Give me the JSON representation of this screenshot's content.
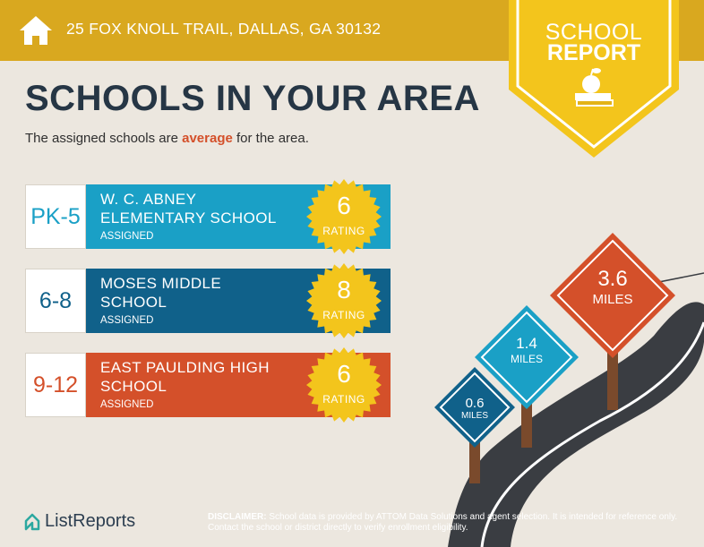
{
  "header": {
    "address": "25 FOX KNOLL TRAIL, DALLAS, GA 30132",
    "badge_line1": "SCHOOL",
    "badge_line2": "REPORT"
  },
  "main": {
    "title": "SCHOOLS IN YOUR AREA",
    "subtitle_prefix": "The assigned schools are ",
    "subtitle_highlight": "average",
    "subtitle_suffix": " for the area."
  },
  "schools": [
    {
      "grades": "PK-5",
      "name_line1": "W. C. ABNEY",
      "name_line2": "ELEMENTARY SCHOOL",
      "status": "ASSIGNED",
      "rating": "6",
      "rating_label": "RATING",
      "color": "#1aa0c6"
    },
    {
      "grades": "6-8",
      "name_line1": "MOSES MIDDLE",
      "name_line2": "SCHOOL",
      "status": "ASSIGNED",
      "rating": "8",
      "rating_label": "RATING",
      "color": "#10618a"
    },
    {
      "grades": "9-12",
      "name_line1": "EAST PAULDING HIGH",
      "name_line2": "SCHOOL",
      "status": "ASSIGNED",
      "rating": "6",
      "rating_label": "RATING",
      "color": "#d4502a"
    }
  ],
  "distances": [
    {
      "value": "0.6",
      "unit": "MILES",
      "color": "#10618a"
    },
    {
      "value": "1.4",
      "unit": "MILES",
      "color": "#1aa0c6"
    },
    {
      "value": "3.6",
      "unit": "MILES",
      "color": "#d4502a"
    }
  ],
  "footer": {
    "brand": "ListReports",
    "disclaimer_label": "DISCLAIMER:",
    "disclaimer_text": " School data is provided by ATTOM Data Solutions and agent selection. It is intended for reference only. Contact the school or district directly to verify enrollment eligibility."
  },
  "colors": {
    "header": "#d9a81f",
    "badge": "#f3c51c",
    "seal": "#f3c51c",
    "title": "#263645",
    "highlight": "#d4502a"
  }
}
